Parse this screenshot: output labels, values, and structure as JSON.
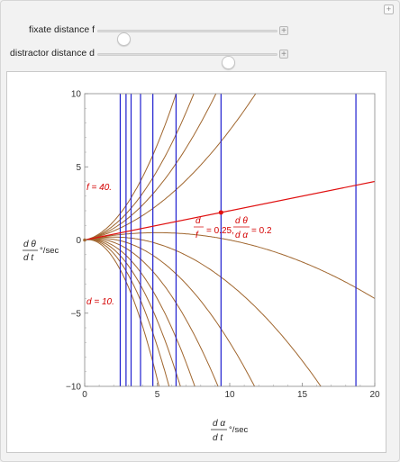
{
  "controls": [
    {
      "label": "fixate distance f",
      "value_fraction": 0.14
    },
    {
      "label": "distractor distance d",
      "value_fraction": 0.72
    }
  ],
  "plus_symbol": "+",
  "chart_data": {
    "type": "line",
    "xlim": [
      0,
      20
    ],
    "ylim": [
      -10,
      10
    ],
    "x_ticks": [
      "0",
      "5",
      "10",
      "15",
      "20"
    ],
    "y_ticks": [
      "10",
      "5",
      "0",
      "−5",
      "−10"
    ],
    "xlabel": {
      "num": "d α",
      "bar": "",
      "unit": "°/sec",
      "den": "d t"
    },
    "ylabel": {
      "num": "d θ",
      "unit": "°/sec",
      "den": "d t"
    },
    "f_label": "f = 40.",
    "d_label": "d = 10.",
    "ratio_label": {
      "d": "d",
      "f": "f",
      "eq1": "= 0.25,",
      "dtheta": "d θ",
      "dalpha": "d α",
      "eq2": "= 0.2"
    },
    "blue_lines_x": [
      2.45,
      2.85,
      3.2,
      3.85,
      4.7,
      6.3,
      9.4,
      18.7
    ],
    "brown_curves_k": [
      0.055,
      0.1,
      0.15,
      0.22,
      -0.02,
      -0.05,
      -0.09,
      -0.14,
      -0.2,
      -0.26,
      -0.33,
      -0.42
    ],
    "red_line": {
      "x": [
        0,
        20
      ],
      "y": [
        0,
        4
      ]
    },
    "red_point": {
      "x": 9.4,
      "y": 1.88
    },
    "colors": {
      "blue": "#1f1fcf",
      "brown": "#a0662e",
      "red": "#e01010",
      "label_red": "#d40000"
    }
  }
}
